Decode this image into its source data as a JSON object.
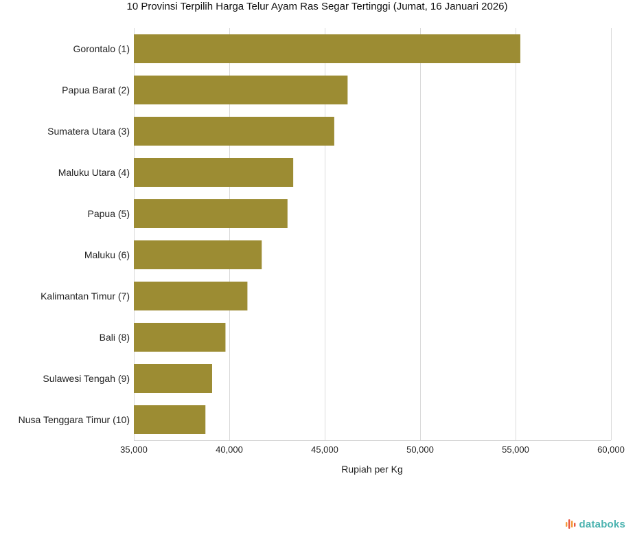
{
  "colors": {
    "bar": "#9C8C33",
    "grid": "#d9d9d9",
    "brand_text": "#4bb3b0",
    "brand_mark_1": "#f39c3c",
    "brand_mark_2": "#e8553e"
  },
  "brand": {
    "name": "databoks",
    "icon": "databoks-logo-icon"
  },
  "chart_data": {
    "type": "bar",
    "orientation": "horizontal",
    "title": "10 Provinsi Terpilih Harga Telur Ayam Ras Segar Tertinggi (Jumat, 16 Januari 2026)",
    "xlabel": "Rupiah per Kg",
    "ylabel": "",
    "categories": [
      "Gorontalo (1)",
      "Papua Barat (2)",
      "Sumatera Utara (3)",
      "Maluku Utara (4)",
      "Papua (5)",
      "Maluku (6)",
      "Kalimantan Timur (7)",
      "Bali (8)",
      "Sulawesi Tengah (9)",
      "Nusa Tenggara Timur (10)"
    ],
    "values": [
      55250,
      46200,
      45500,
      43350,
      43050,
      41700,
      40950,
      39800,
      39100,
      38750
    ],
    "xlim": [
      35000,
      60000
    ],
    "xticks": [
      35000,
      40000,
      45000,
      50000,
      55000,
      60000
    ],
    "xtick_labels": [
      "35,000",
      "40,000",
      "45,000",
      "50,000",
      "55,000",
      "60,000"
    ],
    "grid": true,
    "legend": "none"
  }
}
